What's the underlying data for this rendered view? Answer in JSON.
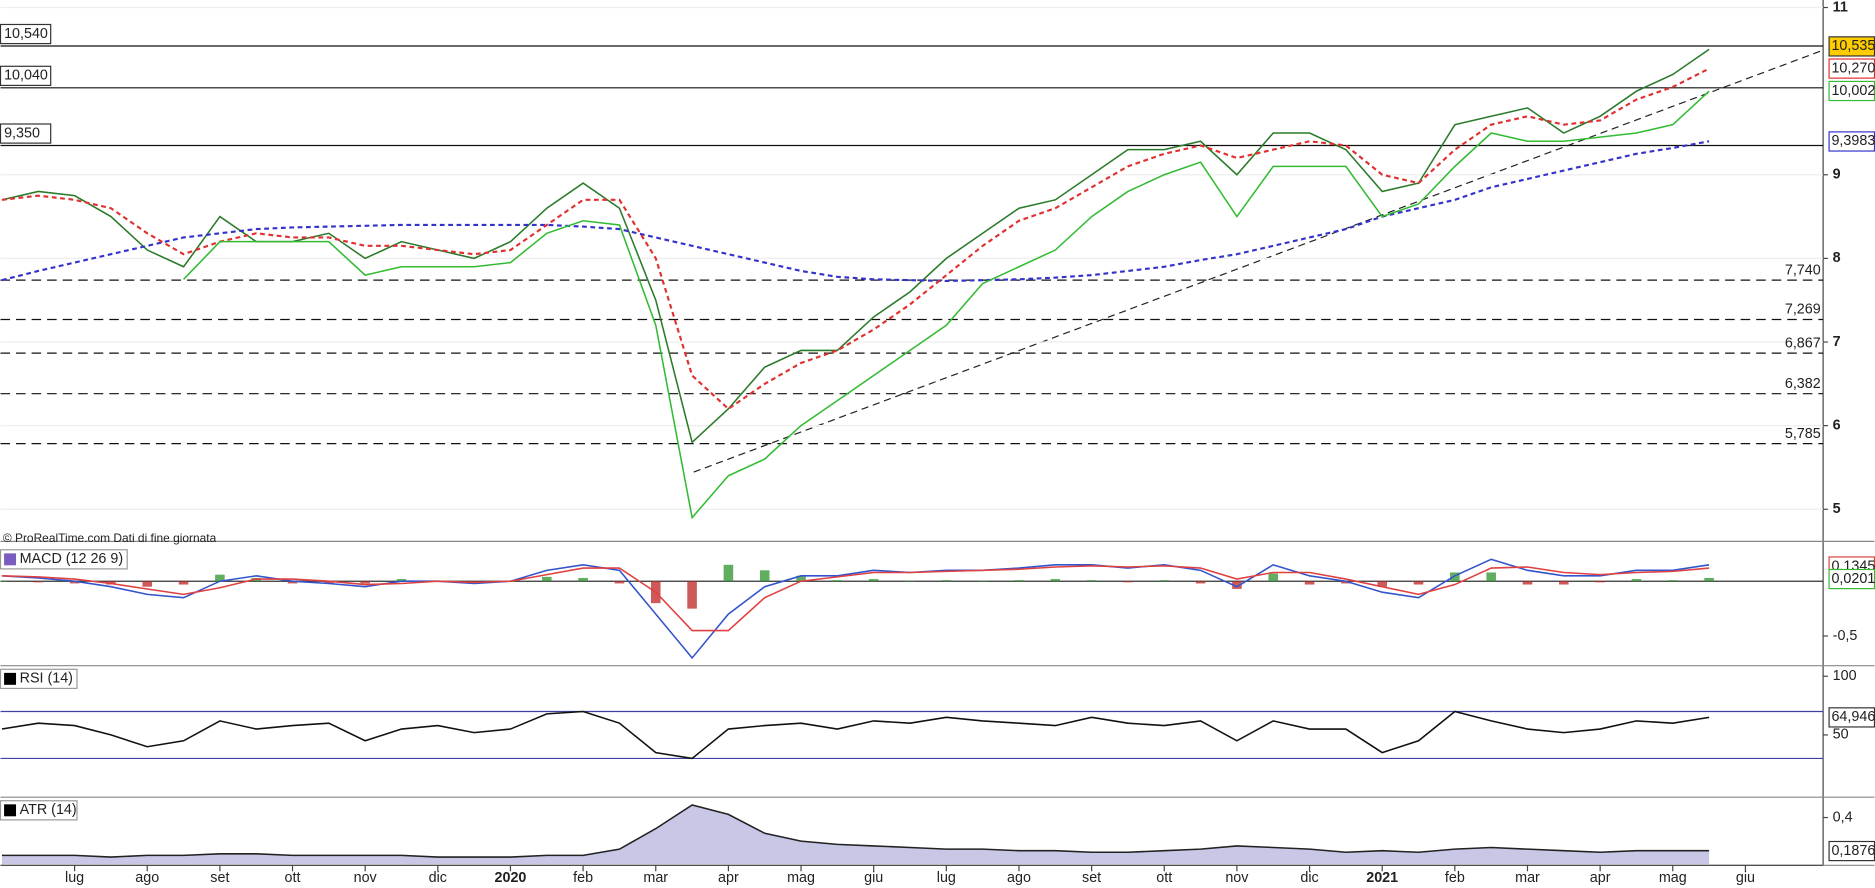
{
  "chart_data": [
    {
      "type": "price",
      "title": "© ProRealTime.com Dati di fine giornata",
      "ylim": [
        4.63,
        11.09
      ],
      "yticks": [
        5,
        6,
        7,
        8,
        9,
        11
      ],
      "grid": true,
      "categories": [
        null,
        null,
        "lug",
        null,
        "ago",
        null,
        "set",
        null,
        "ott",
        null,
        "nov",
        null,
        "dic",
        null,
        "2020",
        null,
        "feb",
        null,
        "mar",
        null,
        "apr",
        null,
        "mag",
        null,
        "giu",
        null,
        "lug",
        null,
        "ago",
        null,
        "set",
        null,
        "ott",
        null,
        "nov",
        null,
        "dic",
        null,
        "2021",
        null,
        "feb",
        null,
        "mar",
        null,
        "apr",
        null,
        "mag",
        null,
        "giu"
      ],
      "series": [
        {
          "kind": "line",
          "color": "#2a7a2a",
          "values": [
            8.7,
            8.8,
            8.75,
            8.5,
            8.1,
            7.9,
            8.5,
            8.2,
            8.2,
            8.3,
            8.0,
            8.2,
            8.1,
            8.0,
            8.2,
            8.6,
            8.9,
            8.6,
            7.5,
            5.8,
            6.2,
            6.7,
            6.9,
            6.9,
            7.3,
            7.6,
            8.0,
            8.3,
            8.6,
            8.7,
            9.0,
            9.3,
            9.3,
            9.4,
            9.0,
            9.5,
            9.5,
            9.3,
            8.8,
            8.9,
            9.6,
            9.7,
            9.8,
            9.5,
            9.7,
            10.0,
            10.2,
            10.5,
            null
          ]
        },
        {
          "kind": "line",
          "color": "#3333cc",
          "dashed": true,
          "values": [
            7.74,
            7.85,
            7.95,
            8.05,
            8.15,
            8.25,
            8.3,
            8.35,
            8.37,
            8.38,
            8.39,
            8.4,
            8.4,
            8.4,
            8.4,
            8.4,
            8.38,
            8.35,
            8.25,
            8.15,
            8.05,
            7.95,
            7.85,
            7.78,
            7.75,
            7.74,
            7.73,
            7.74,
            7.75,
            7.77,
            7.8,
            7.85,
            7.9,
            7.98,
            8.05,
            8.15,
            8.25,
            8.35,
            8.5,
            8.6,
            8.7,
            8.85,
            8.95,
            9.05,
            9.15,
            9.25,
            9.32,
            9.4,
            null
          ]
        },
        {
          "kind": "line",
          "color": "#e03030",
          "dashed": true,
          "values": [
            8.7,
            8.75,
            8.7,
            8.6,
            8.3,
            8.05,
            8.2,
            8.3,
            8.25,
            8.25,
            8.15,
            8.15,
            8.1,
            8.05,
            8.1,
            8.4,
            8.7,
            8.7,
            8.0,
            6.6,
            6.2,
            6.5,
            6.75,
            6.9,
            7.15,
            7.45,
            7.8,
            8.15,
            8.45,
            8.6,
            8.85,
            9.1,
            9.25,
            9.35,
            9.2,
            9.3,
            9.4,
            9.35,
            9.0,
            8.9,
            9.3,
            9.6,
            9.7,
            9.6,
            9.65,
            9.9,
            10.05,
            10.27,
            null
          ]
        },
        {
          "kind": "line",
          "color": "#33bb33",
          "values": [
            null,
            null,
            null,
            null,
            null,
            7.75,
            8.2,
            8.2,
            8.2,
            8.2,
            7.8,
            7.9,
            7.9,
            7.9,
            7.95,
            8.3,
            8.45,
            8.4,
            7.2,
            4.9,
            5.4,
            5.6,
            6.0,
            6.3,
            6.6,
            6.9,
            7.2,
            7.7,
            7.9,
            8.1,
            8.5,
            8.8,
            9.0,
            9.15,
            8.5,
            9.1,
            9.1,
            9.1,
            8.5,
            8.65,
            9.1,
            9.5,
            9.4,
            9.4,
            9.45,
            9.5,
            9.6,
            10.0,
            null
          ]
        }
      ],
      "levels": [
        {
          "value": 10.54,
          "label": "10,540",
          "style": "solid"
        },
        {
          "value": 10.04,
          "label": "10,040",
          "style": "solid"
        },
        {
          "value": 9.35,
          "label": "9,350",
          "style": "solid"
        },
        {
          "value": 7.74,
          "label": "7,740",
          "style": "dashed"
        },
        {
          "value": 7.269,
          "label": "7,269",
          "style": "dashed"
        },
        {
          "value": 6.867,
          "label": "6,867",
          "style": "dashed"
        },
        {
          "value": 6.382,
          "label": "6,382",
          "style": "dashed"
        },
        {
          "value": 5.785,
          "label": "5,785",
          "style": "dashed"
        }
      ],
      "last_labels": [
        {
          "value": 10.535,
          "label": "10,535",
          "color": "#ffcc00"
        },
        {
          "value": 10.27,
          "label": "10,270",
          "color": "#e03030"
        },
        {
          "value": 10.002,
          "label": "10,002",
          "color": "#33bb33"
        },
        {
          "value": 9.3983,
          "label": "9,3983",
          "color": "#3333cc"
        }
      ]
    },
    {
      "type": "macd",
      "title": "MACD (12 26 9)",
      "ylim": [
        -0.76,
        0.32
      ],
      "yticks": [
        {
          "value": -0.5,
          "label": "-0,5"
        }
      ],
      "series": [
        {
          "kind": "bar",
          "color": "#3a9a3a",
          "negative_color": "#c03030",
          "values": [
            0,
            -0.01,
            -0.02,
            -0.03,
            -0.05,
            -0.03,
            0.06,
            0.03,
            -0.02,
            -0.02,
            -0.02,
            0.02,
            0,
            -0.01,
            0,
            0.04,
            0.03,
            -0.02,
            -0.2,
            -0.25,
            0.15,
            0.1,
            0.05,
            0.01,
            0.02,
            0,
            0.01,
            0,
            0.01,
            0.02,
            0.01,
            -0.01,
            0.01,
            -0.02,
            -0.07,
            0.07,
            -0.03,
            -0.02,
            -0.05,
            -0.03,
            0.08,
            0.08,
            -0.03,
            -0.03,
            -0.01,
            0.02,
            0.01,
            0.03,
            null
          ]
        },
        {
          "kind": "line",
          "color": "#3355cc",
          "values": [
            0.05,
            0.03,
            0.0,
            -0.05,
            -0.12,
            -0.15,
            0.0,
            0.05,
            0.0,
            -0.02,
            -0.05,
            0.0,
            0.0,
            -0.02,
            0.0,
            0.1,
            0.15,
            0.1,
            -0.3,
            -0.7,
            -0.3,
            -0.05,
            0.05,
            0.05,
            0.1,
            0.08,
            0.1,
            0.1,
            0.12,
            0.15,
            0.15,
            0.12,
            0.15,
            0.1,
            -0.05,
            0.15,
            0.05,
            0.0,
            -0.1,
            -0.15,
            0.05,
            0.2,
            0.1,
            0.05,
            0.05,
            0.1,
            0.1,
            0.15,
            null
          ]
        },
        {
          "kind": "line",
          "color": "#e04040",
          "values": [
            0.05,
            0.04,
            0.02,
            -0.02,
            -0.07,
            -0.12,
            -0.06,
            0.02,
            0.02,
            0.0,
            -0.03,
            -0.02,
            0.0,
            -0.01,
            0.0,
            0.06,
            0.12,
            0.12,
            -0.1,
            -0.45,
            -0.45,
            -0.15,
            0.0,
            0.04,
            0.08,
            0.08,
            0.09,
            0.1,
            0.11,
            0.13,
            0.14,
            0.13,
            0.14,
            0.12,
            0.02,
            0.08,
            0.08,
            0.02,
            -0.05,
            -0.12,
            -0.03,
            0.12,
            0.13,
            0.08,
            0.06,
            0.08,
            0.09,
            0.12,
            null
          ]
        }
      ],
      "last_labels": [
        {
          "value": 0.1345,
          "label": "0,1345",
          "color": "#e04040"
        },
        {
          "value": 0.0201,
          "label": "0,0201",
          "color": "#33bb33"
        }
      ]
    },
    {
      "type": "rsi",
      "title": "RSI (14)",
      "ylim": [
        -2,
        109
      ],
      "yticks": [
        50,
        100
      ],
      "bands": [
        30,
        70
      ],
      "series": [
        {
          "kind": "line",
          "color": "#111",
          "values": [
            55,
            60,
            58,
            50,
            40,
            45,
            62,
            55,
            58,
            60,
            45,
            55,
            58,
            52,
            55,
            68,
            70,
            60,
            35,
            30,
            55,
            58,
            60,
            55,
            62,
            60,
            65,
            62,
            60,
            58,
            65,
            60,
            58,
            62,
            45,
            62,
            55,
            55,
            35,
            45,
            70,
            62,
            55,
            52,
            55,
            62,
            60,
            65,
            null
          ]
        }
      ],
      "last_labels": [
        {
          "value": 64.946,
          "label": "64,946",
          "color": "#ffffff"
        }
      ]
    },
    {
      "type": "atr",
      "title": "ATR (14)",
      "ylim": [
        0.105,
        0.529
      ],
      "yticks": [
        {
          "value": 0.4,
          "label": "0,4"
        }
      ],
      "series": [
        {
          "kind": "area",
          "color": "#222",
          "fill": "#c8c8e6",
          "values": [
            0.16,
            0.16,
            0.16,
            0.15,
            0.16,
            0.16,
            0.17,
            0.17,
            0.16,
            0.16,
            0.16,
            0.16,
            0.15,
            0.15,
            0.15,
            0.16,
            0.16,
            0.2,
            0.33,
            0.48,
            0.42,
            0.3,
            0.25,
            0.23,
            0.22,
            0.21,
            0.2,
            0.2,
            0.19,
            0.19,
            0.18,
            0.18,
            0.19,
            0.2,
            0.22,
            0.21,
            0.2,
            0.18,
            0.19,
            0.18,
            0.2,
            0.21,
            0.2,
            0.19,
            0.18,
            0.19,
            0.19,
            0.19,
            null
          ]
        }
      ],
      "last_labels": [
        {
          "value": 0.1876,
          "label": "0,1876",
          "color": "#ffffff"
        }
      ]
    }
  ]
}
